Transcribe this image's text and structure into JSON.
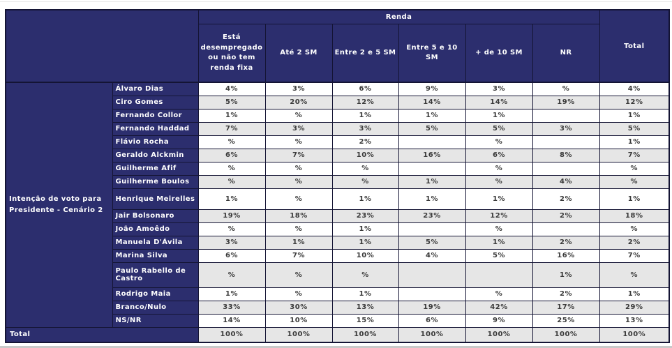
{
  "colors": {
    "header_navy": "#2c2e6e",
    "stripe_gray": "#e6e6e6",
    "row_white": "#ffffff",
    "grid_border": "#141434",
    "value_text": "#3a3a3a",
    "header_text": "#ffffff"
  },
  "chart_data": {
    "type": "table",
    "title": "Intenção de voto para Presidente - Cenário 2",
    "group_header": "Renda",
    "columns": [
      "Está desempregado ou não tem renda fixa",
      "Até 2 SM",
      "Entre 2 e 5 SM",
      "Entre 5 e 10 SM",
      "+ de 10 SM",
      "NR",
      "Total"
    ],
    "row_group_label": "Intenção de voto para Presidente - Cenário 2",
    "rows": [
      {
        "candidate": "Álvaro Dias",
        "values": [
          "4%",
          "3%",
          "6%",
          "9%",
          "3%",
          "%",
          "4%"
        ]
      },
      {
        "candidate": "Ciro Gomes",
        "values": [
          "5%",
          "20%",
          "12%",
          "14%",
          "14%",
          "19%",
          "12%"
        ]
      },
      {
        "candidate": "Fernando Collor",
        "values": [
          "1%",
          "%",
          "1%",
          "1%",
          "1%",
          "",
          "1%"
        ]
      },
      {
        "candidate": "Fernando Haddad",
        "values": [
          "7%",
          "3%",
          "3%",
          "5%",
          "5%",
          "3%",
          "5%"
        ]
      },
      {
        "candidate": "Flávio Rocha",
        "values": [
          "%",
          "%",
          "2%",
          "",
          "%",
          "",
          "1%"
        ]
      },
      {
        "candidate": "Geraldo Alckmin",
        "values": [
          "6%",
          "7%",
          "10%",
          "16%",
          "6%",
          "8%",
          "7%"
        ]
      },
      {
        "candidate": "Guilherme Afif",
        "values": [
          "%",
          "%",
          "%",
          "",
          "%",
          "",
          "%"
        ]
      },
      {
        "candidate": "Guilherme Boulos",
        "values": [
          "%",
          "%",
          "%",
          "1%",
          "%",
          "4%",
          "%"
        ]
      },
      {
        "candidate": "Henrique Meirelles",
        "values": [
          "1%",
          "%",
          "1%",
          "1%",
          "1%",
          "2%",
          "1%"
        ]
      },
      {
        "candidate": "Jair Bolsonaro",
        "values": [
          "19%",
          "18%",
          "23%",
          "23%",
          "12%",
          "2%",
          "18%"
        ]
      },
      {
        "candidate": "João Amoêdo",
        "values": [
          "%",
          "%",
          "1%",
          "",
          "%",
          "",
          "%"
        ]
      },
      {
        "candidate": "Manuela D'Ávila",
        "values": [
          "3%",
          "1%",
          "1%",
          "5%",
          "1%",
          "2%",
          "2%"
        ]
      },
      {
        "candidate": "Marina Silva",
        "values": [
          "6%",
          "7%",
          "10%",
          "4%",
          "5%",
          "16%",
          "7%"
        ]
      },
      {
        "candidate": "Paulo Rabello de Castro",
        "values": [
          "%",
          "%",
          "%",
          "",
          "",
          "1%",
          "%"
        ]
      },
      {
        "candidate": "Rodrigo Maia",
        "values": [
          "1%",
          "%",
          "1%",
          "",
          "%",
          "2%",
          "1%"
        ]
      },
      {
        "candidate": "Branco/Nulo",
        "values": [
          "33%",
          "30%",
          "13%",
          "19%",
          "42%",
          "17%",
          "29%"
        ]
      },
      {
        "candidate": "NS/NR",
        "values": [
          "14%",
          "10%",
          "15%",
          "6%",
          "9%",
          "25%",
          "13%"
        ]
      }
    ],
    "total_row": {
      "label": "Total",
      "values": [
        "100%",
        "100%",
        "100%",
        "100%",
        "100%",
        "100%",
        "100%"
      ]
    }
  }
}
